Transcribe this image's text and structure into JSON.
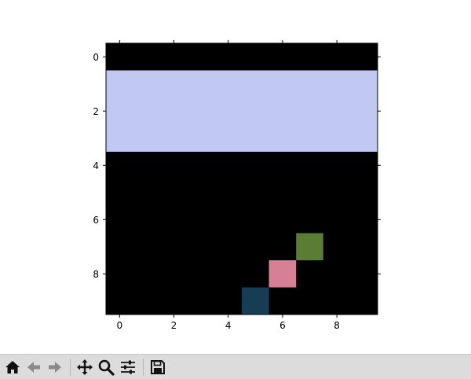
{
  "chart_data": {
    "type": "heatmap",
    "title": "",
    "xlabel": "",
    "ylabel": "",
    "xlim": [
      -0.5,
      9.5
    ],
    "ylim": [
      9.5,
      -0.5
    ],
    "x_ticks": [
      "0",
      "2",
      "4",
      "6",
      "8"
    ],
    "y_ticks": [
      "0",
      "2",
      "4",
      "6",
      "8"
    ],
    "background_color": "#000000",
    "cells": [
      {
        "x0": -0.5,
        "x1": 9.5,
        "y0": 0.5,
        "y1": 3.5,
        "color": "#c1c9f2",
        "label": "band-rows-1-3"
      },
      {
        "x0": 6.5,
        "x1": 7.5,
        "y0": 6.5,
        "y1": 7.5,
        "color": "#5a7d35",
        "label": "cell-7-7"
      },
      {
        "x0": 5.5,
        "x1": 6.5,
        "y0": 7.5,
        "y1": 8.5,
        "color": "#d67f95",
        "label": "cell-8-6"
      },
      {
        "x0": 4.5,
        "x1": 5.5,
        "y0": 8.5,
        "y1": 9.5,
        "color": "#173d54",
        "label": "cell-9-5"
      }
    ]
  },
  "toolbar": {
    "buttons": [
      {
        "name": "home-button",
        "icon": "home-icon"
      },
      {
        "name": "back-button",
        "icon": "arrow-left-icon"
      },
      {
        "name": "forward-button",
        "icon": "arrow-right-icon"
      },
      {
        "name": "pan-button",
        "icon": "move-icon"
      },
      {
        "name": "zoom-button",
        "icon": "magnifier-icon"
      },
      {
        "name": "configure-subplots-button",
        "icon": "sliders-icon"
      },
      {
        "name": "save-button",
        "icon": "floppy-disk-icon"
      }
    ]
  }
}
